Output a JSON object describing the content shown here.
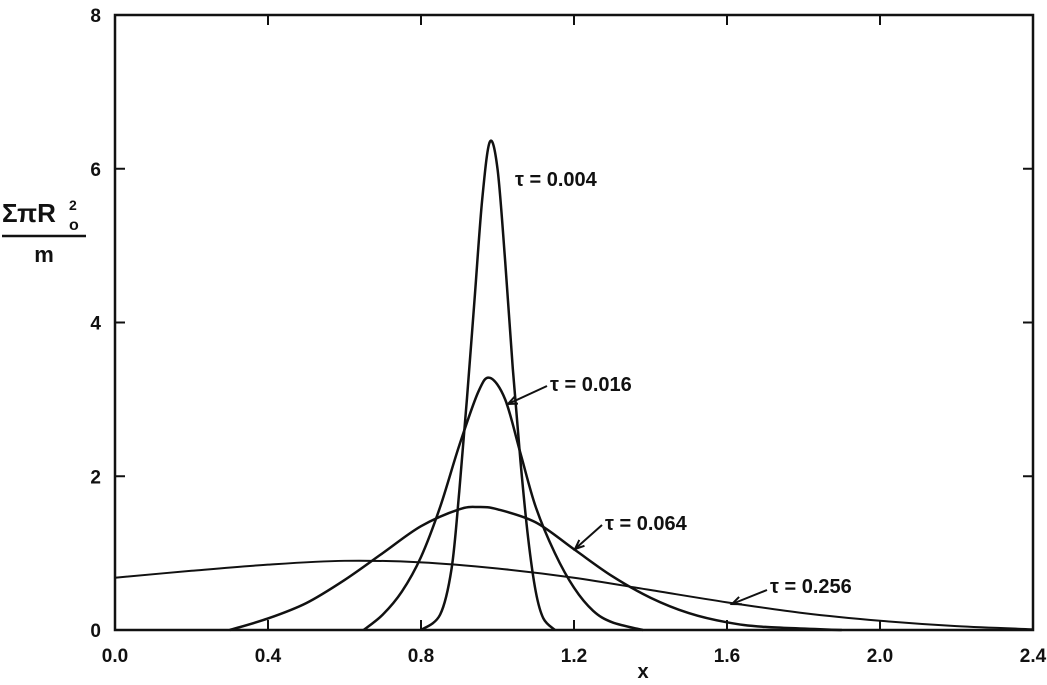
{
  "chart_data": {
    "type": "line",
    "xlabel": "x",
    "ylabel_numerator": "ΣπR",
    "ylabel_subscript": "o",
    "ylabel_superscript": "2",
    "ylabel_denominator": "m",
    "xlim": [
      0,
      2.4
    ],
    "ylim": [
      0,
      8
    ],
    "xticks": [
      {
        "value": 0,
        "label": "0.0"
      },
      {
        "value": 0.4,
        "label": "0.4"
      },
      {
        "value": 0.8,
        "label": "0.8"
      },
      {
        "value": 1.2,
        "label": "1.2"
      },
      {
        "value": 1.6,
        "label": "1.6"
      },
      {
        "value": 2.0,
        "label": "2.0"
      },
      {
        "value": 2.4,
        "label": "2.4"
      }
    ],
    "yticks": [
      0,
      2,
      4,
      6,
      8
    ],
    "series": [
      {
        "name": "τ = 0.004",
        "color": "#111111",
        "x": [
          0.8,
          0.85,
          0.88,
          0.9,
          0.92,
          0.94,
          0.96,
          0.98,
          1.0,
          1.02,
          1.04,
          1.06,
          1.08,
          1.1,
          1.12,
          1.15
        ],
        "values": [
          0,
          0.2,
          0.8,
          1.8,
          3.0,
          4.3,
          5.6,
          6.35,
          6.0,
          4.8,
          3.4,
          2.2,
          1.2,
          0.5,
          0.15,
          0
        ]
      },
      {
        "name": "τ = 0.016",
        "color": "#111111",
        "x": [
          0.65,
          0.7,
          0.75,
          0.8,
          0.85,
          0.9,
          0.95,
          0.98,
          1.02,
          1.06,
          1.1,
          1.15,
          1.2,
          1.25,
          1.3,
          1.38
        ],
        "values": [
          0,
          0.2,
          0.5,
          0.95,
          1.6,
          2.4,
          3.1,
          3.28,
          3.0,
          2.3,
          1.6,
          1.0,
          0.55,
          0.25,
          0.1,
          0
        ]
      },
      {
        "name": "τ = 0.064",
        "color": "#111111",
        "x": [
          0.3,
          0.4,
          0.5,
          0.6,
          0.7,
          0.8,
          0.9,
          0.95,
          1.0,
          1.1,
          1.2,
          1.3,
          1.4,
          1.5,
          1.6,
          1.7,
          1.9
        ],
        "values": [
          0,
          0.15,
          0.35,
          0.65,
          1.0,
          1.35,
          1.57,
          1.6,
          1.57,
          1.4,
          1.05,
          0.7,
          0.42,
          0.22,
          0.1,
          0.04,
          0
        ]
      },
      {
        "name": "τ = 0.256",
        "color": "#111111",
        "x": [
          0,
          0.2,
          0.4,
          0.6,
          0.8,
          1.0,
          1.2,
          1.4,
          1.6,
          1.8,
          2.0,
          2.2,
          2.4
        ],
        "values": [
          0.68,
          0.77,
          0.85,
          0.9,
          0.88,
          0.8,
          0.68,
          0.52,
          0.36,
          0.22,
          0.12,
          0.05,
          0.01
        ]
      }
    ]
  }
}
